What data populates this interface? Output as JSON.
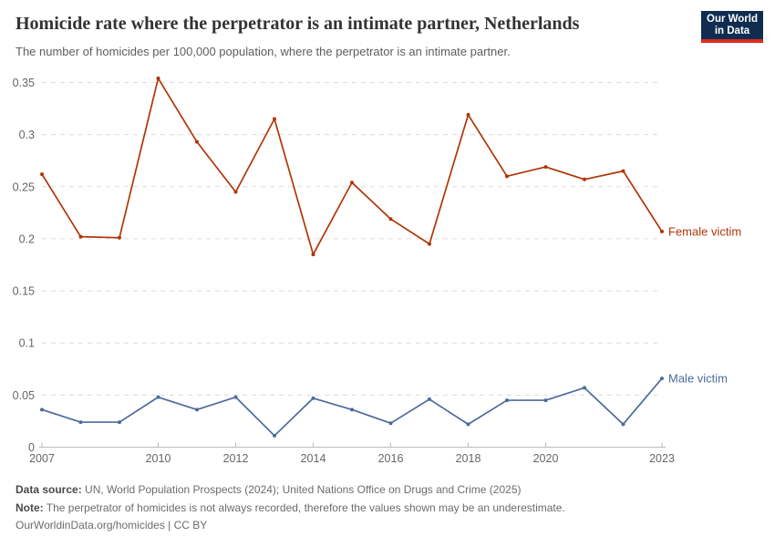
{
  "chart_data": {
    "type": "line",
    "title": "Homicide rate where the perpetrator is an intimate partner, Netherlands",
    "subtitle": "The number of homicides per 100,000 population, where the perpetrator is an intimate partner.",
    "x": [
      2007,
      2008,
      2009,
      2010,
      2011,
      2012,
      2013,
      2014,
      2015,
      2016,
      2017,
      2018,
      2019,
      2020,
      2021,
      2022,
      2023
    ],
    "series": [
      {
        "name": "Female victim",
        "color": "#b13507",
        "values": [
          0.262,
          0.202,
          0.201,
          0.354,
          0.293,
          0.245,
          0.315,
          0.185,
          0.254,
          0.219,
          0.195,
          0.319,
          0.26,
          0.269,
          0.257,
          0.265,
          0.207
        ]
      },
      {
        "name": "Male victim",
        "color": "#4c6a9c",
        "values": [
          0.036,
          0.024,
          0.024,
          0.048,
          0.036,
          0.048,
          0.011,
          0.047,
          0.036,
          0.023,
          0.046,
          0.022,
          0.045,
          0.045,
          0.057,
          0.022,
          0.066
        ]
      }
    ],
    "ylim": [
      0,
      0.35
    ],
    "yticks": [
      0,
      0.05,
      0.1,
      0.15,
      0.2,
      0.25,
      0.3,
      0.35
    ],
    "xticks": [
      2007,
      2010,
      2012,
      2014,
      2016,
      2018,
      2020,
      2023
    ],
    "grid": "horizontal-dashed",
    "legend_position": "line-end-labels"
  },
  "logo": {
    "line1": "Our World",
    "line2": "in Data"
  },
  "footer": {
    "data_source_label": "Data source:",
    "data_source_text": " UN, World Population Prospects (2024); United Nations Office on Drugs and Crime (2025)",
    "note_label": "Note:",
    "note_text": " The perpetrator of homicides is not always recorded, therefore the values shown may be an underestimate.",
    "license": "OurWorldinData.org/homicides | CC BY"
  },
  "colors": {
    "female_series": "#b13507",
    "male_series": "#4c6a9c",
    "gridline": "#dcdcdc",
    "axis": "#bcbcbc",
    "tick_label": "#666666",
    "logo_bg": "#102d50",
    "logo_bar": "#dc2a1d"
  }
}
